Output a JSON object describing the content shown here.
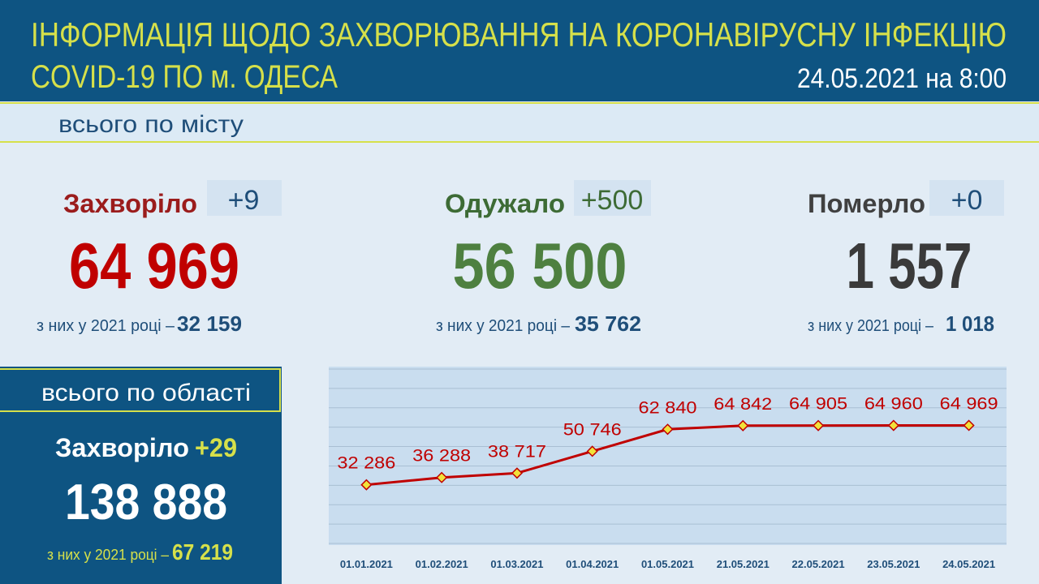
{
  "header": {
    "title_line1": "ІНФОРМАЦІЯ ЩОДО ЗАХВОРЮВАННЯ НА КОРОНАВІРУСНУ ІНФЕКЦІЮ",
    "title_line2": "COVID-19 ПО м. ОДЕСА",
    "date": "24.05.2021 на 8:00"
  },
  "city": {
    "label": "всього по місту",
    "stats": [
      {
        "label": "Захворіло",
        "delta": "+9",
        "total": "64 969",
        "year_label": "з них у 2021 році –",
        "year_value": "32 159"
      },
      {
        "label": "Одужало",
        "delta": "+500",
        "total": "56 500",
        "year_label": "з них у 2021 році –",
        "year_value": "35 762"
      },
      {
        "label": "Померло",
        "delta": "+0",
        "total": "1 557",
        "year_label": "з них у 2021 році –",
        "year_value": "1 018"
      }
    ]
  },
  "region": {
    "label": "всього по області",
    "case_label": "Захворіло",
    "delta": "+29",
    "total": "138 888",
    "year_label": "з них у 2021 році –",
    "year_value": "67 219"
  },
  "chart_data": {
    "type": "line",
    "categories": [
      "01.01.2021",
      "01.02.2021",
      "01.03.2021",
      "01.04.2021",
      "01.05.2021",
      "21.05.2021",
      "22.05.2021",
      "23.05.2021",
      "24.05.2021"
    ],
    "values": [
      32286,
      36288,
      38717,
      50746,
      62840,
      64842,
      64905,
      64960,
      64969
    ],
    "value_labels": [
      "32 286",
      "36 288",
      "38 717",
      "50 746",
      "62 840",
      "64 842",
      "64 905",
      "64 960",
      "64 969"
    ],
    "color": "#c00000",
    "ylim": [
      0,
      96000
    ],
    "grid": true
  }
}
